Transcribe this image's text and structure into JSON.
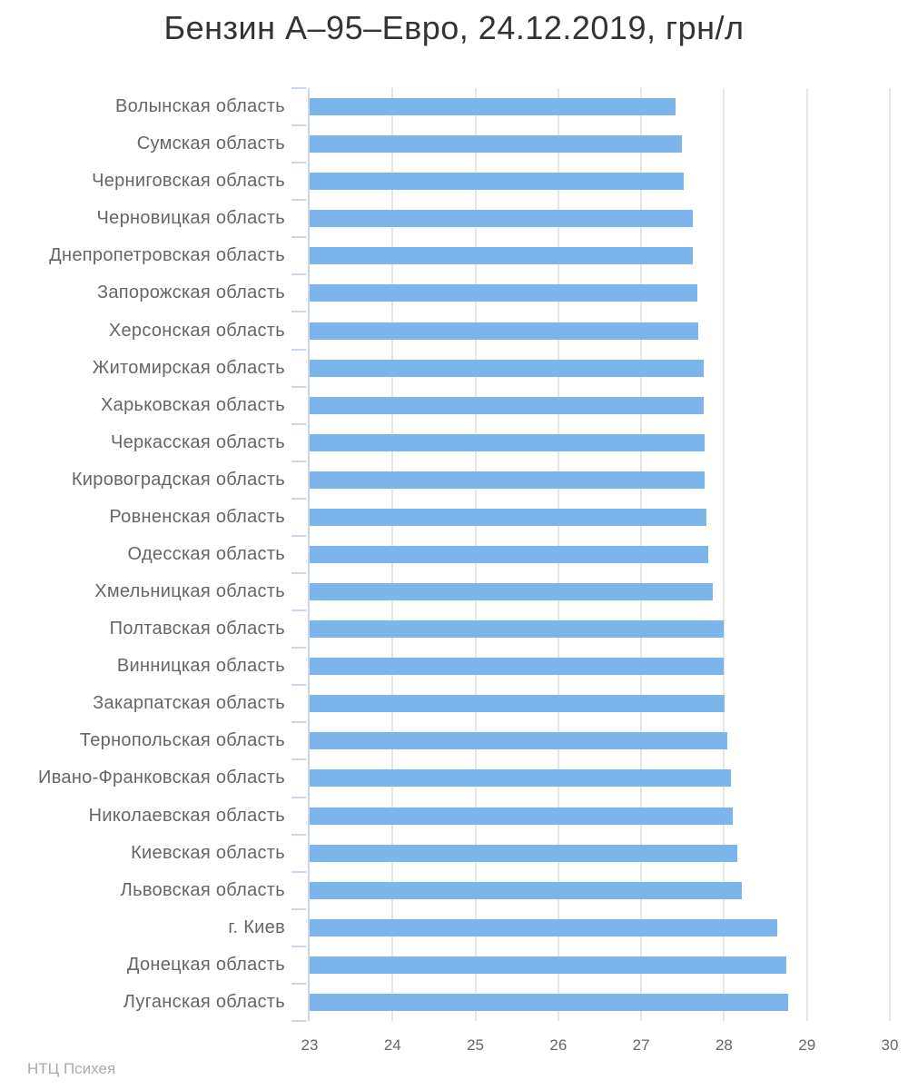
{
  "chart_data": {
    "type": "bar",
    "title": "Бензин А–95–Евро, 24.12.2019, грн/л",
    "categories": [
      "Волынская область",
      "Сумская область",
      "Черниговская область",
      "Черновицкая область",
      "Днепропетровская область",
      "Запорожская область",
      "Херсонская область",
      "Житомирская область",
      "Харьковская область",
      "Черкасская область",
      "Кировоградская область",
      "Ровненская область",
      "Одесская область",
      "Хмельницкая область",
      "Полтавская область",
      "Винницкая область",
      "Закарпатская область",
      "Тернопольская область",
      "Ивано-Франковская область",
      "Николаевская область",
      "Киевская область",
      "Львовская область",
      "г. Киев",
      "Донецкая область",
      "Луганская область"
    ],
    "values": [
      27.42,
      27.49,
      27.51,
      27.62,
      27.62,
      27.68,
      27.69,
      27.75,
      27.75,
      27.77,
      27.77,
      27.79,
      27.81,
      27.86,
      27.99,
      27.99,
      28.01,
      28.04,
      28.08,
      28.1,
      28.16,
      28.21,
      28.64,
      28.75,
      28.77
    ],
    "xlabel": "",
    "ylabel": "",
    "xlim": [
      23,
      30
    ],
    "x_ticks": [
      23,
      24,
      25,
      26,
      27,
      28,
      29,
      30
    ],
    "grid": "vertical-on",
    "legend": "none",
    "bar_color": "#7cb5ec",
    "grid_color": "#e6e6e6",
    "axis_line_color": "#ccd6eb",
    "label_color": "#666666",
    "title_color": "#333333"
  },
  "footer": {
    "watermark": "НТЦ Психея"
  }
}
